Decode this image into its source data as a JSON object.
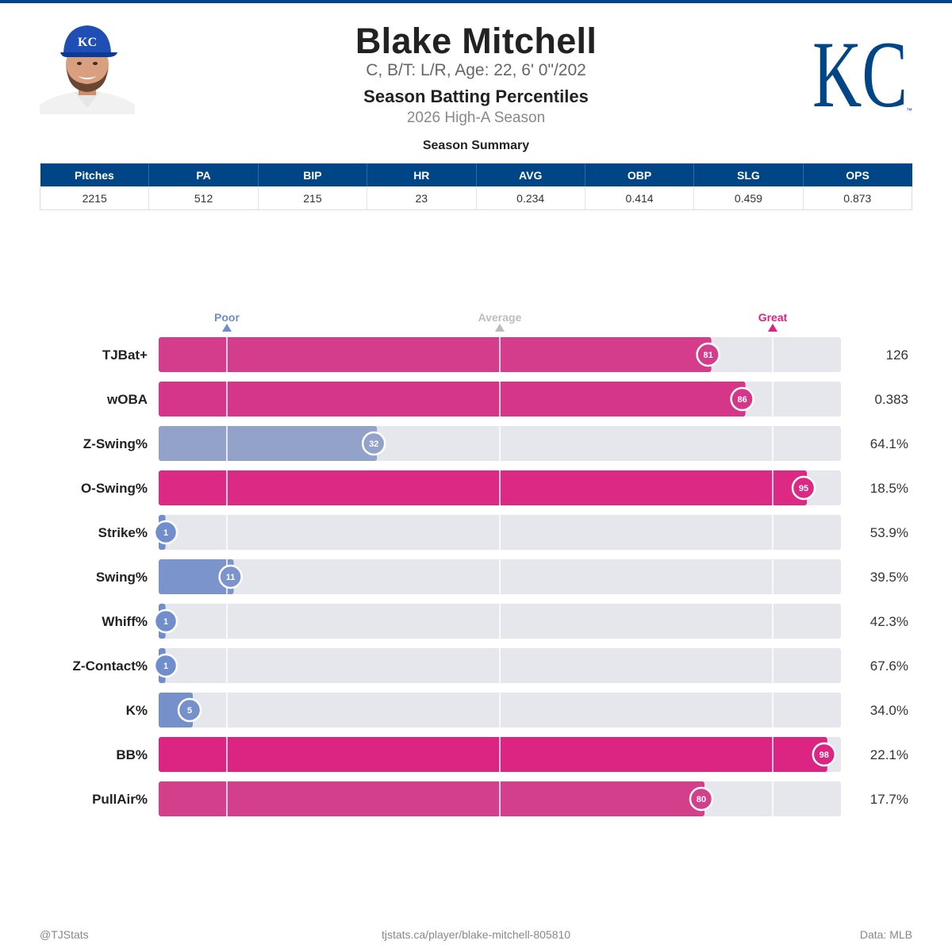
{
  "header": {
    "name": "Blake Mitchell",
    "bio": "C, B/T: L/R, Age: 22, 6' 0\"/202",
    "subtitle": "Season Batting Percentiles",
    "season": "2026 High-A Season",
    "summary_title": "Season Summary",
    "logo_text": "KC"
  },
  "summary": {
    "columns": [
      "Pitches",
      "PA",
      "BIP",
      "HR",
      "AVG",
      "OBP",
      "SLG",
      "OPS"
    ],
    "values": [
      "2215",
      "512",
      "215",
      "23",
      "0.234",
      "0.414",
      "0.459",
      "0.873"
    ]
  },
  "colors": {
    "team": "#004687",
    "poor": "#6f8ccc",
    "average": "#bdbdbd",
    "great": "#dd2281",
    "track": "#e6e7ec"
  },
  "chart_data": {
    "type": "bar",
    "orientation": "horizontal",
    "xlim": [
      0,
      100
    ],
    "reference_lines": [
      10,
      50,
      90
    ],
    "scale_labels": [
      {
        "label": "Poor",
        "value": 10
      },
      {
        "label": "Average",
        "value": 50
      },
      {
        "label": "Great",
        "value": 90
      }
    ],
    "categories": [
      "TJBat+",
      "wOBA",
      "Z-Swing%",
      "O-Swing%",
      "Strike%",
      "Swing%",
      "Whiff%",
      "Z-Contact%",
      "K%",
      "BB%",
      "PullAir%"
    ],
    "values": [
      81,
      86,
      32,
      95,
      1,
      11,
      1,
      1,
      5,
      98,
      80
    ],
    "stat_values": [
      "126",
      "0.383",
      "64.1%",
      "18.5%",
      "53.9%",
      "39.5%",
      "42.3%",
      "67.6%",
      "34.0%",
      "22.1%",
      "17.7%"
    ]
  },
  "footer": {
    "left": "@TJStats",
    "center": "tjstats.ca/player/blake-mitchell-805810",
    "right": "Data: MLB"
  }
}
